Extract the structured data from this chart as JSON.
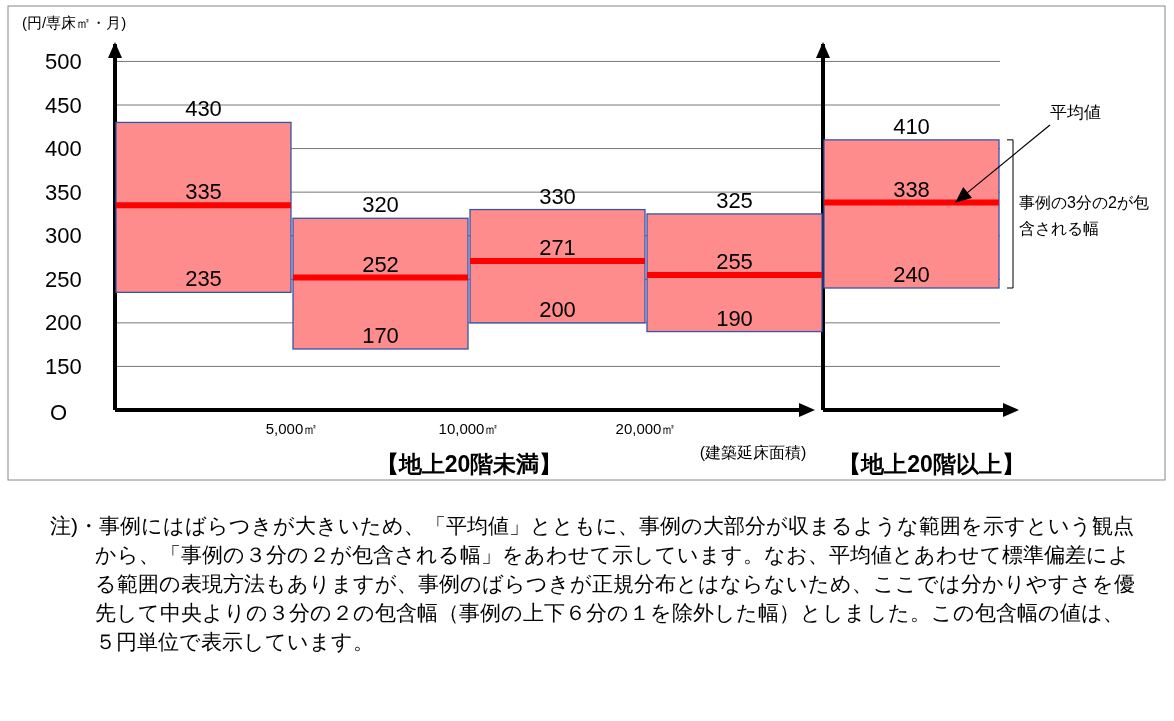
{
  "chart_data": {
    "type": "box",
    "title": "【地上20階未満】",
    "ylabel": "(円/専床㎡・月)",
    "xlabel": "(建築延床面積)",
    "categories": [
      null,
      null,
      null,
      null,
      null
    ],
    "series": [
      {
        "color": "#ff8c8c",
        "boxes": [
          {
            "low": 235,
            "q1": 235,
            "median": 335,
            "q3": 430,
            "high": 430
          },
          {
            "low": 170,
            "q1": 170,
            "median": 252,
            "q3": 320,
            "high": 320
          },
          {
            "low": 200,
            "q1": 200,
            "median": 271,
            "q3": 330,
            "high": 330
          },
          {
            "low": 190,
            "q1": 190,
            "median": 255,
            "q3": 325,
            "high": 325
          },
          {
            "low": 240,
            "q1": 240,
            "median": 338,
            "q3": 410,
            "high": 410
          }
        ]
      }
    ],
    "ylim": [
      100,
      520
    ],
    "yticks": [
      150,
      200,
      250,
      300,
      350,
      400,
      450,
      500
    ],
    "grid": "y",
    "annotations": [
      {
        "text": "430",
        "y": 430
      },
      {
        "text": "335",
        "y": 335
      },
      {
        "text": "235",
        "y": 235
      },
      {
        "text": "320",
        "y": 320
      },
      {
        "text": "252",
        "y": 252
      },
      {
        "text": "170",
        "y": 170
      },
      {
        "text": "330",
        "y": 330
      },
      {
        "text": "271",
        "y": 271
      },
      {
        "text": "200",
        "y": 200
      },
      {
        "text": "325",
        "y": 325
      },
      {
        "text": "255",
        "y": 255
      },
      {
        "text": "190",
        "y": 190
      },
      {
        "text": "410",
        "y": 410
      },
      {
        "text": "338",
        "y": 338
      },
      {
        "text": "240",
        "y": 240
      },
      "O",
      "5,000㎡",
      "10,000㎡",
      "20,000㎡",
      "【地上20階以上】",
      "平均値",
      "事例の3分の2が包含される幅",
      "注)・事例にはばらつきが大きいため、「平均値」とともに、事例の大部分が収まるような範囲を示すという観点から、「事例の３分の２が包含される幅」をあわせて示しています。なお、平均値とあわせて標準偏差による範囲の表現方法もありますが、事例のばらつきが正規分布とはならないため、ここでは分かりやすさを優先して中央よりの３分の２の包含幅（事例の上下６分の１を除外した幅）としました。この包含幅の値は、５円単位で表示しています。"
    ]
  }
}
